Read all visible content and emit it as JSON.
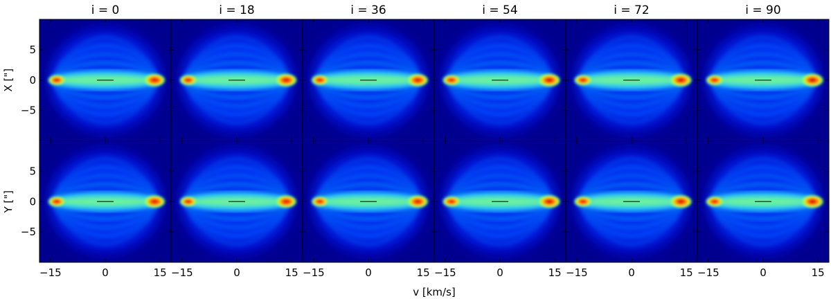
{
  "chart_data": {
    "type": "heatmap",
    "layout": {
      "rows": 2,
      "cols": 6
    },
    "column_titles": [
      "i = 0",
      "i = 18",
      "i = 36",
      "i = 54",
      "i = 72",
      "i = 90"
    ],
    "row_ylabels": [
      "X [\"]",
      "Y [\"]"
    ],
    "xlabel": "v [km/s]",
    "xlim": [
      -18,
      18
    ],
    "ylim": [
      -10,
      10
    ],
    "xticks": [
      -15,
      0,
      15
    ],
    "xtick_labels": [
      "−15",
      "0",
      "15"
    ],
    "yticks": [
      5,
      0,
      -5
    ],
    "ytick_labels": [
      "5",
      "0",
      "−5"
    ],
    "colormap": "jet",
    "background_color": "#00008f",
    "panel_features": {
      "ellipse_semi_axes": {
        "v": 15.5,
        "pos": 8.8
      },
      "arcs_pos": [
        1.6,
        3.0,
        4.5,
        6.0,
        7.4
      ],
      "right_peak_strength": [
        [
          0.92,
          0.95,
          0.9,
          1.0,
          1.0,
          1.0
        ],
        [
          0.92,
          0.9,
          0.9,
          1.0,
          1.0,
          1.0
        ]
      ],
      "left_peak_strength": [
        [
          0.88,
          0.85,
          0.82,
          0.9,
          0.9,
          0.85
        ],
        [
          0.85,
          0.82,
          0.8,
          0.92,
          0.92,
          0.88
        ]
      ]
    }
  }
}
